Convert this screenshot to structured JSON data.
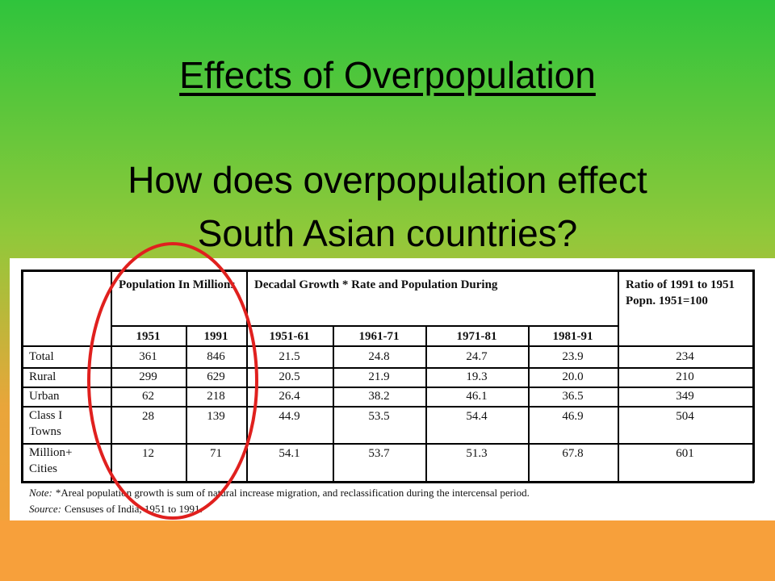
{
  "header": {
    "title": "Effects of Overpopulation",
    "question": [
      "How does overpopulation effect",
      "South Asian countries?"
    ]
  },
  "table": {
    "group_headers": [
      "Population In Millions",
      "Decadal Growth * Rate and Population  During",
      "Ratio of 1991 to 1951 Popn. 1951=100"
    ],
    "columns": [
      "1951",
      "1991",
      "1951-61",
      "1961-71",
      "1971-81",
      "1981-91"
    ],
    "rows": [
      {
        "label": [
          "Total"
        ],
        "cells": [
          "361",
          "846",
          "21.5",
          "24.8",
          "24.7",
          "23.9",
          "234"
        ]
      },
      {
        "label": [
          "Rural"
        ],
        "cells": [
          "299",
          "629",
          "20.5",
          "21.9",
          "19.3",
          "20.0",
          "210"
        ]
      },
      {
        "label": [
          "Urban"
        ],
        "cells": [
          "62",
          "218",
          "26.4",
          "38.2",
          "46.1",
          "36.5",
          "349"
        ]
      },
      {
        "label": [
          "Class I",
          "Towns"
        ],
        "cells": [
          "28",
          "139",
          "44.9",
          "53.5",
          "54.4",
          "46.9",
          "504"
        ]
      },
      {
        "label": [
          "Million+",
          "Cities"
        ],
        "cells": [
          "12",
          "71",
          "54.1",
          "53.7",
          "51.3",
          "67.8",
          "601"
        ]
      }
    ]
  },
  "note": {
    "label": "Note:",
    "text": "*Areal population growth is sum of natural increase migration, and reclassification during the intercensal period."
  },
  "source": {
    "label": "Source:",
    "text": "Censuses of India, 1951 to 1991."
  }
}
